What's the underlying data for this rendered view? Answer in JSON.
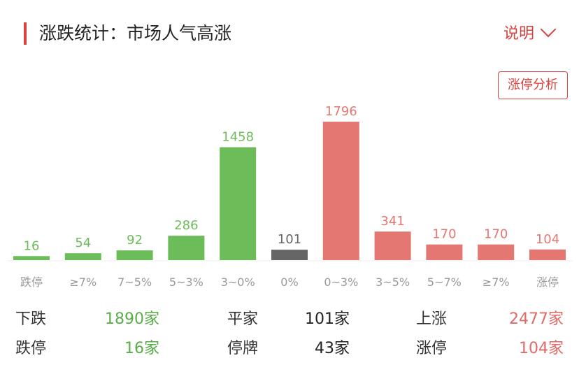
{
  "header": {
    "title": "涨跌统计：市场人气高涨",
    "explain_label": "说明"
  },
  "limit_analysis_button": "涨停分析",
  "colors": {
    "down": "#6cbd5a",
    "flat": "#666666",
    "up": "#e57773",
    "accent": "#d9433f"
  },
  "chart_data": {
    "type": "bar",
    "categories": [
      "跌停",
      "≥7%",
      "7~5%",
      "5~3%",
      "3~0%",
      "0%",
      "0~3%",
      "3~5%",
      "5~7%",
      "≥7%",
      "涨停"
    ],
    "values": [
      16,
      54,
      92,
      286,
      1458,
      101,
      1796,
      341,
      170,
      170,
      104
    ],
    "value_labels": [
      "16",
      "54",
      "92",
      "286",
      "1458",
      "101",
      "1796",
      "341",
      "170",
      "170",
      "104"
    ],
    "series_color_groups": [
      "down",
      "down",
      "down",
      "down",
      "down",
      "flat",
      "up",
      "up",
      "up",
      "up",
      "up"
    ]
  },
  "stats": {
    "row1": [
      {
        "label": "下跌",
        "value": "1890家",
        "color": "down"
      },
      {
        "label": "平家",
        "value": "101家",
        "color": "flat"
      },
      {
        "label": "上涨",
        "value": "2477家",
        "color": "up"
      }
    ],
    "row2": [
      {
        "label": "跌停",
        "value": "16家",
        "color": "down"
      },
      {
        "label": "停牌",
        "value": "43家",
        "color": "flat"
      },
      {
        "label": "涨停",
        "value": "104家",
        "color": "up"
      }
    ]
  }
}
